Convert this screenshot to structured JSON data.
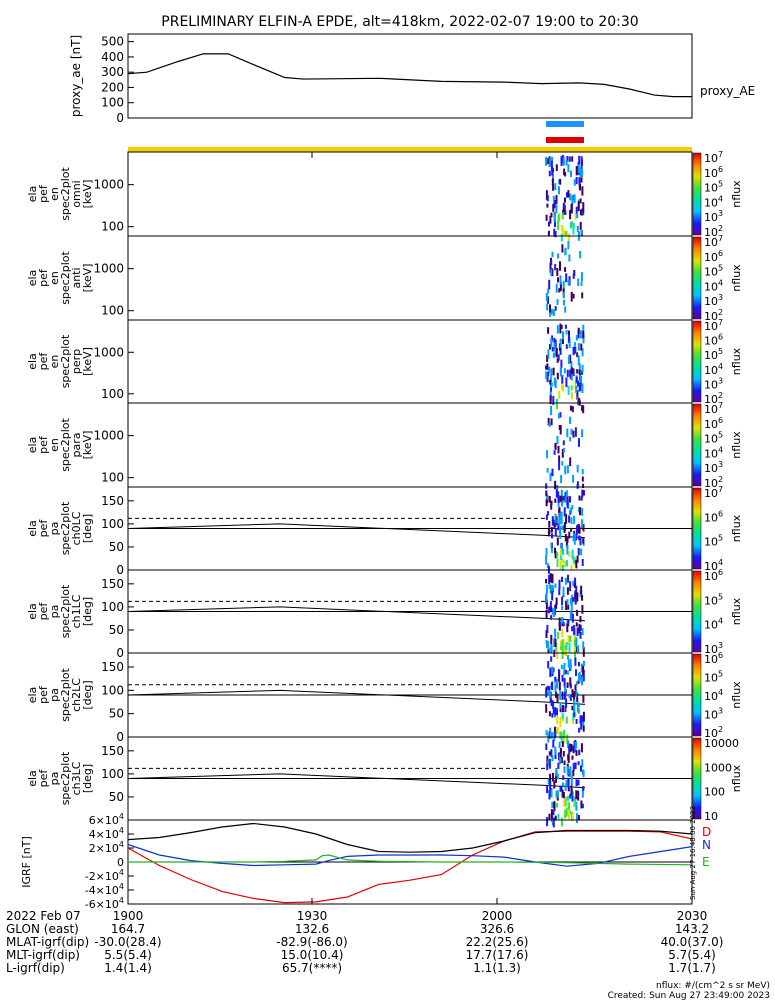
{
  "title": "PRELIMINARY ELFIN-A EPDE, alt=418km, 2022-02-07 19:00 to 20:30",
  "footer": {
    "units": "nflux: #/(cm^2 s sr MeV)",
    "created": "Created: Sun Aug 27 23:49:00 2023",
    "stamp": "Sun Aug 27 16:48:00 2023"
  },
  "xaxis": {
    "tick_labels": [
      "1900",
      "1930",
      "2000",
      "2030"
    ],
    "rows": [
      {
        "label": "2022 Feb 07",
        "values": [
          "1900",
          "1930",
          "2000",
          "2030"
        ]
      },
      {
        "label": "GLON (east)",
        "values": [
          "164.7",
          "132.6",
          "326.6",
          "143.2"
        ]
      },
      {
        "label": "MLAT-igrf(dip)",
        "values": [
          "-30.0(28.4)",
          "-82.9(-86.0)",
          "22.2(25.6)",
          "40.0(37.0)"
        ]
      },
      {
        "label": "MLT-igrf(dip)",
        "values": [
          "5.5(5.4)",
          "15.0(10.4)",
          "17.7(17.6)",
          "5.7(5.4)"
        ]
      },
      {
        "label": "L-igrf(dip)",
        "values": [
          "1.4(1.4)",
          "65.7(****)",
          "1.1(1.3)",
          "1.7(1.7)"
        ]
      }
    ]
  },
  "colors": {
    "blue_bar": "#1e90ff",
    "red_bar": "#e00000",
    "yellow_bar": "#f5d000",
    "D": "#e00000",
    "N": "#1030d0",
    "E": "#20b020"
  },
  "chart_data": [
    {
      "type": "line",
      "ylabel": "proxy_ae [nT]",
      "legend": "proxy_AE",
      "yticks": [
        "0",
        "100",
        "200",
        "300",
        "400",
        "500"
      ],
      "ylim": [
        0,
        550
      ],
      "xlim": [
        0,
        90
      ],
      "series": [
        {
          "name": "proxy_AE",
          "x": [
            0,
            3,
            8,
            12,
            16,
            20,
            25,
            28,
            40,
            50,
            60,
            66,
            72,
            76,
            80,
            84,
            87,
            90
          ],
          "y": [
            290,
            300,
            370,
            420,
            420,
            350,
            265,
            255,
            260,
            240,
            235,
            225,
            230,
            220,
            190,
            150,
            140,
            140
          ]
        }
      ]
    },
    {
      "type": "heatmap",
      "ylabel": [
        "ela",
        "pef",
        "en",
        "spec2plot",
        "omni",
        "[keV]"
      ],
      "yticks": [
        "100",
        "1000"
      ],
      "colorbar_ticks": [
        "10^2",
        "10^3",
        "10^4",
        "10^5",
        "10^6",
        "10^7"
      ],
      "colorbar_label": "nflux"
    },
    {
      "type": "heatmap",
      "ylabel": [
        "ela",
        "pef",
        "en",
        "spec2plot",
        "anti",
        "[keV]"
      ],
      "yticks": [
        "100",
        "1000"
      ],
      "colorbar_ticks": [
        "10^2",
        "10^3",
        "10^4",
        "10^5",
        "10^6",
        "10^7"
      ],
      "colorbar_label": "nflux"
    },
    {
      "type": "heatmap",
      "ylabel": [
        "ela",
        "pef",
        "en",
        "spec2plot",
        "perp",
        "[keV]"
      ],
      "yticks": [
        "100",
        "1000"
      ],
      "colorbar_ticks": [
        "10^2",
        "10^3",
        "10^4",
        "10^5",
        "10^6",
        "10^7"
      ],
      "colorbar_label": "nflux"
    },
    {
      "type": "heatmap",
      "ylabel": [
        "ela",
        "pef",
        "en",
        "spec2plot",
        "para",
        "[keV]"
      ],
      "yticks": [
        "100",
        "1000"
      ],
      "colorbar_ticks": [
        "10^2",
        "10^3",
        "10^4",
        "10^5",
        "10^6",
        "10^7"
      ],
      "colorbar_label": "nflux"
    },
    {
      "type": "heatmap",
      "ylabel": [
        "ela",
        "pef",
        "pa",
        "spec2plot",
        "ch0LC",
        "[deg]"
      ],
      "yticks": [
        "0",
        "50",
        "100",
        "150"
      ],
      "colorbar_ticks": [
        "10^4",
        "10^5",
        "10^6",
        "10^7"
      ],
      "colorbar_label": "nflux"
    },
    {
      "type": "heatmap",
      "ylabel": [
        "ela",
        "pef",
        "pa",
        "spec2plot",
        "ch1LC",
        "[deg]"
      ],
      "yticks": [
        "0",
        "50",
        "100",
        "150"
      ],
      "colorbar_ticks": [
        "10^3",
        "10^4",
        "10^5",
        "10^6"
      ],
      "colorbar_label": "nflux"
    },
    {
      "type": "heatmap",
      "ylabel": [
        "ela",
        "pef",
        "pa",
        "spec2plot",
        "ch2LC",
        "[deg]"
      ],
      "yticks": [
        "0",
        "50",
        "100",
        "150"
      ],
      "colorbar_ticks": [
        "10^2",
        "10^3",
        "10^4",
        "10^5",
        "10^6"
      ],
      "colorbar_label": "nflux"
    },
    {
      "type": "heatmap",
      "ylabel": [
        "ela",
        "pef",
        "pa",
        "spec2plot",
        "ch3LC",
        "[deg]"
      ],
      "yticks": [
        "50",
        "100",
        "150"
      ],
      "colorbar_ticks": [
        "10",
        "100",
        "1000",
        "10000"
      ],
      "colorbar_label": "nflux"
    },
    {
      "type": "line",
      "ylabel": "IGRF [nT]",
      "yticks": [
        "-6×10^4",
        "-4×10^4",
        "-2×10^4",
        "0",
        "2×10^4",
        "4×10^4",
        "6×10^4"
      ],
      "ylim": [
        -60000,
        60000
      ],
      "xlim": [
        0,
        90
      ],
      "series": [
        {
          "name": "D",
          "x": [
            0,
            5,
            10,
            15,
            20,
            25,
            30,
            35,
            40,
            45,
            50,
            55,
            60,
            65,
            70,
            75,
            80,
            85,
            90
          ],
          "y": [
            20000,
            -5000,
            -25000,
            -42000,
            -52000,
            -58000,
            -57000,
            -50000,
            -32000,
            -26000,
            -18000,
            10000,
            30000,
            43000,
            44000,
            44000,
            44000,
            43000,
            33000
          ]
        },
        {
          "name": "N",
          "x": [
            0,
            5,
            10,
            15,
            20,
            25,
            30,
            32,
            35,
            40,
            45,
            50,
            55,
            60,
            65,
            70,
            75,
            80,
            85,
            90
          ],
          "y": [
            25000,
            10000,
            2000,
            -2000,
            -5000,
            -4000,
            -3000,
            2000,
            8000,
            10000,
            10000,
            10000,
            9000,
            7000,
            0,
            -6000,
            -2000,
            8000,
            15000,
            22000
          ]
        },
        {
          "name": "E",
          "x": [
            0,
            10,
            20,
            25,
            30,
            31,
            32,
            35,
            40,
            50,
            60,
            70,
            80,
            90
          ],
          "y": [
            0,
            0,
            0,
            1000,
            3000,
            9000,
            10000,
            3000,
            1000,
            0,
            0,
            -1000,
            -3000,
            -4000
          ]
        },
        {
          "name": "",
          "x": [
            0,
            5,
            10,
            15,
            20,
            25,
            30,
            35,
            40,
            45,
            50,
            55,
            60,
            65,
            70,
            75,
            80,
            85,
            90
          ],
          "y": [
            32000,
            35000,
            42000,
            50000,
            55000,
            50000,
            40000,
            25000,
            15000,
            14000,
            15000,
            20000,
            30000,
            42000,
            45000,
            45000,
            45000,
            44000,
            40000
          ]
        }
      ]
    }
  ]
}
